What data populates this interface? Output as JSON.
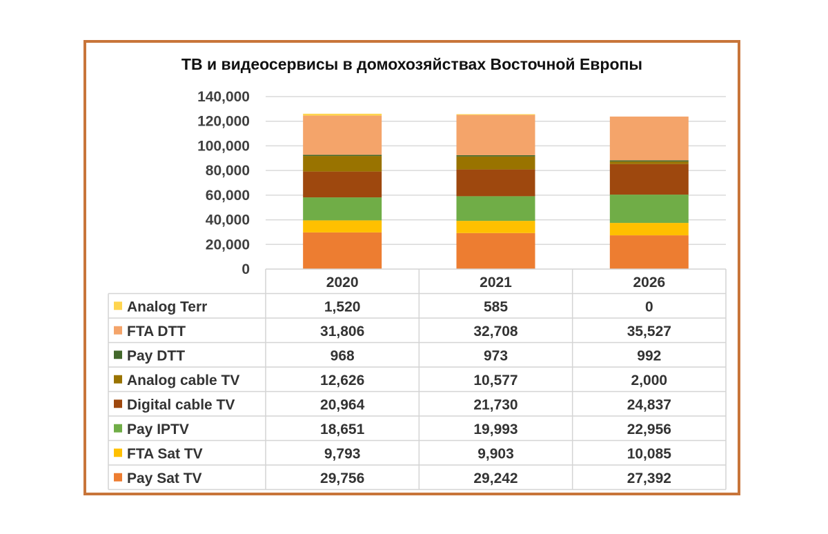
{
  "chart_data": {
    "type": "bar",
    "stacked": true,
    "title": "ТВ и видеосервисы в домохозяйствах Восточной Европы",
    "categories": [
      "2020",
      "2021",
      "2026"
    ],
    "ylim": [
      0,
      140000
    ],
    "yticks": [
      0,
      20000,
      40000,
      60000,
      80000,
      100000,
      120000,
      140000
    ],
    "ytick_labels": [
      "0",
      "20,000",
      "40,000",
      "60,000",
      "80,000",
      "100,000",
      "120,000",
      "140,000"
    ],
    "grid": true,
    "legend": "data-table",
    "series": [
      {
        "name": "Pay Sat TV",
        "color": "#ed7d31",
        "values": [
          29756,
          29242,
          27392
        ],
        "labels": [
          "29,756",
          "29,242",
          "27,392"
        ]
      },
      {
        "name": "FTA Sat TV",
        "color": "#ffc000",
        "values": [
          9793,
          9903,
          10085
        ],
        "labels": [
          "9,793",
          "9,903",
          "10,085"
        ]
      },
      {
        "name": "Pay IPTV",
        "color": "#70ad47",
        "values": [
          18651,
          19993,
          22956
        ],
        "labels": [
          "18,651",
          "19,993",
          "22,956"
        ]
      },
      {
        "name": "Digital cable TV",
        "color": "#9e480e",
        "values": [
          20964,
          21730,
          24837
        ],
        "labels": [
          "20,964",
          "21,730",
          "24,837"
        ]
      },
      {
        "name": "Analog cable TV",
        "color": "#997300",
        "values": [
          12626,
          10577,
          2000
        ],
        "labels": [
          "12,626",
          "10,577",
          "2,000"
        ]
      },
      {
        "name": "Pay DTT",
        "color": "#43682b",
        "values": [
          968,
          973,
          992
        ],
        "labels": [
          "968",
          "973",
          "992"
        ]
      },
      {
        "name": "FTA DTT",
        "color": "#f4a46a",
        "values": [
          31806,
          32708,
          35527
        ],
        "labels": [
          "31,806",
          "32,708",
          "35,527"
        ]
      },
      {
        "name": "Analog Terr",
        "color": "#ffd54f",
        "values": [
          1520,
          585,
          0
        ],
        "labels": [
          "1,520",
          "585",
          "0"
        ]
      }
    ]
  }
}
